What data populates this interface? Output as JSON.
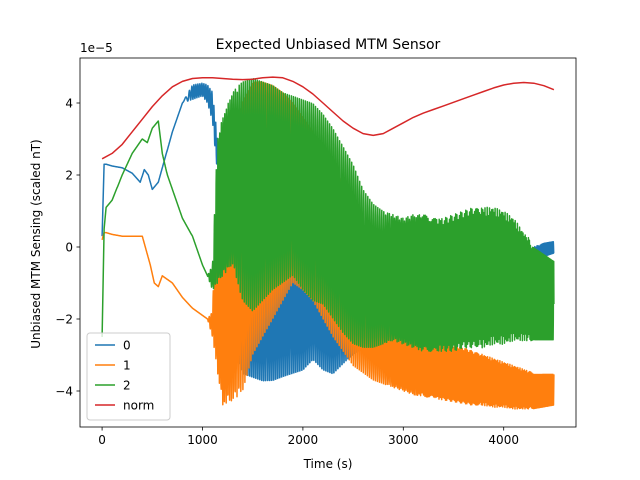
{
  "chart_data": {
    "type": "line",
    "title": "Expected Unbiased MTM Sensor",
    "xlabel": "Time (s)",
    "ylabel": "Unbiased MTM Sensing (scaled nT)",
    "offset_text": "1e−5",
    "xlim": [
      -220,
      4720
    ],
    "ylim": [
      -5.0,
      5.25
    ],
    "xticks": [
      0,
      1000,
      2000,
      3000,
      4000
    ],
    "xtick_labels": [
      "0",
      "1000",
      "2000",
      "3000",
      "4000"
    ],
    "yticks": [
      -4,
      -2,
      0,
      2,
      4
    ],
    "ytick_labels": [
      "−4",
      "−2",
      "0",
      "2",
      "4"
    ],
    "y_unit_scale": 1e-05,
    "grid": false,
    "legend_position": "lower-left",
    "series": [
      {
        "name": "0",
        "color": "#1f77b4",
        "envelope": {
          "x": [
            0,
            20,
            40,
            100,
            200,
            300,
            380,
            420,
            460,
            500,
            560,
            620,
            700,
            800,
            900,
            1000,
            1050,
            1100,
            1150,
            1200,
            1300,
            1400,
            1500,
            1600,
            1700,
            1800,
            1900,
            2000,
            2100,
            2200,
            2300,
            2400,
            2500,
            2600,
            2700,
            2800,
            2900,
            3000,
            3100,
            3200,
            3300,
            3400,
            3500,
            3600,
            3700,
            3800,
            3900,
            4000,
            4100,
            4200,
            4300,
            4400,
            4500
          ],
          "upper": [
            0.3,
            2.3,
            2.3,
            2.25,
            2.2,
            2.05,
            1.8,
            2.15,
            2.0,
            1.6,
            1.8,
            2.4,
            3.2,
            4.0,
            4.5,
            4.55,
            4.5,
            4.3,
            3.0,
            2.3,
            2.3,
            0.0,
            -0.2,
            -0.3,
            0.1,
            0.5,
            0.3,
            0.0,
            0.1,
            0.2,
            -0.3,
            -0.7,
            -1.8,
            -2.3,
            -2.6,
            -2.4,
            -2.6,
            -2.7,
            -2.4,
            -2.2,
            -2.1,
            -2.2,
            -2.0,
            -1.7,
            -1.5,
            -1.3,
            -1.1,
            -0.8,
            -0.5,
            -0.2,
            0.0,
            0.1,
            0.15
          ],
          "lower": [
            0.3,
            2.3,
            2.3,
            2.25,
            2.2,
            2.05,
            1.8,
            2.15,
            2.0,
            1.6,
            1.8,
            2.4,
            3.2,
            4.0,
            4.1,
            4.2,
            4.0,
            3.5,
            2.0,
            -0.5,
            -2.5,
            -3.6,
            -3.7,
            -3.8,
            -3.8,
            -3.7,
            -3.6,
            -3.5,
            -3.2,
            -3.5,
            -3.6,
            -3.3,
            -3.0,
            -2.8,
            -3.1,
            -3.2,
            -3.3,
            -3.3,
            -3.2,
            -3.2,
            -3.0,
            -2.9,
            -2.7,
            -2.4,
            -2.1,
            -1.8,
            -1.5,
            -1.2,
            -0.9,
            -0.6,
            -0.4,
            -0.3,
            -0.2
          ],
          "freq": [
            0,
            0,
            0,
            0,
            0,
            0,
            0,
            0,
            0,
            0,
            0,
            0,
            0,
            0,
            0.05,
            0.05,
            0.05,
            0.05,
            0.06,
            0.06,
            0.055,
            0.05,
            0.05,
            0.05,
            0.05,
            0.05,
            0.05,
            0.05,
            0.05,
            0.05,
            0.05,
            0.05,
            0.05,
            0.05,
            0.05,
            0.05,
            0.05,
            0.05,
            0.06,
            0.06,
            0.06,
            0.07,
            0.08,
            0.08,
            0.08,
            0.08,
            0.09,
            0.09,
            0.09,
            0.09,
            0.09,
            0.1,
            0.1
          ]
        }
      },
      {
        "name": "1",
        "color": "#ff7f0e",
        "envelope": {
          "x": [
            0,
            20,
            40,
            100,
            200,
            300,
            400,
            480,
            520,
            560,
            600,
            650,
            700,
            800,
            900,
            1000,
            1050,
            1100,
            1150,
            1200,
            1300,
            1400,
            1500,
            1600,
            1700,
            1800,
            1900,
            2000,
            2100,
            2200,
            2300,
            2400,
            2500,
            2600,
            2700,
            2800,
            2900,
            3000,
            3100,
            3200,
            3300,
            3400,
            3500,
            3600,
            3700,
            3800,
            3900,
            4000,
            4100,
            4200,
            4300,
            4400,
            4500
          ],
          "upper": [
            0.2,
            0.4,
            0.4,
            0.35,
            0.3,
            0.3,
            0.3,
            -0.5,
            -1.0,
            -1.1,
            -0.8,
            -0.9,
            -1.0,
            -1.4,
            -1.7,
            -1.9,
            -2.0,
            -1.8,
            2.0,
            3.0,
            3.5,
            4.1,
            4.6,
            4.6,
            4.5,
            4.3,
            4.0,
            3.6,
            3.2,
            2.6,
            2.2,
            1.8,
            1.0,
            0.0,
            -0.6,
            -1.4,
            -1.6,
            -1.7,
            -1.9,
            -2.1,
            -2.3,
            -2.5,
            -2.7,
            -2.8,
            -2.9,
            -3.0,
            -3.1,
            -3.2,
            -3.3,
            -3.4,
            -3.5,
            -3.5,
            -3.5
          ],
          "lower": [
            0.2,
            0.4,
            0.4,
            0.35,
            0.3,
            0.3,
            0.3,
            -0.5,
            -1.0,
            -1.1,
            -0.8,
            -0.9,
            -1.0,
            -1.4,
            -1.7,
            -1.9,
            -2.0,
            -2.5,
            -3.5,
            -4.4,
            -4.3,
            -4.0,
            -3.0,
            -2.5,
            -2.0,
            -1.5,
            -1.0,
            -1.2,
            -1.5,
            -2.0,
            -2.5,
            -2.9,
            -3.3,
            -3.5,
            -3.7,
            -3.8,
            -3.9,
            -4.0,
            -4.1,
            -4.15,
            -4.2,
            -4.25,
            -4.3,
            -4.35,
            -4.4,
            -4.4,
            -4.45,
            -4.45,
            -4.5,
            -4.5,
            -4.5,
            -4.45,
            -4.4
          ],
          "freq": [
            0,
            0,
            0,
            0,
            0,
            0,
            0,
            0,
            0,
            0,
            0,
            0,
            0,
            0,
            0.05,
            0.05,
            0.05,
            0.05,
            0.06,
            0.06,
            0.055,
            0.05,
            0.05,
            0.05,
            0.05,
            0.05,
            0.05,
            0.05,
            0.05,
            0.05,
            0.05,
            0.05,
            0.05,
            0.05,
            0.05,
            0.05,
            0.06,
            0.06,
            0.06,
            0.07,
            0.07,
            0.08,
            0.08,
            0.08,
            0.08,
            0.09,
            0.09,
            0.09,
            0.09,
            0.09,
            0.1,
            0.1,
            0.1
          ]
        }
      },
      {
        "name": "2",
        "color": "#2ca02c",
        "envelope": {
          "x": [
            0,
            20,
            40,
            100,
            200,
            300,
            400,
            450,
            500,
            560,
            600,
            650,
            700,
            800,
            900,
            1000,
            1050,
            1100,
            1150,
            1200,
            1300,
            1400,
            1500,
            1600,
            1700,
            1800,
            1900,
            2000,
            2100,
            2200,
            2300,
            2400,
            2500,
            2600,
            2700,
            2800,
            2900,
            3000,
            3100,
            3200,
            3300,
            3400,
            3500,
            3600,
            3700,
            3800,
            3900,
            4000,
            4100,
            4200,
            4300,
            4400,
            4500
          ],
          "upper": [
            -2.5,
            0.5,
            1.1,
            1.3,
            2.0,
            2.6,
            3.0,
            2.9,
            3.3,
            3.5,
            2.6,
            2.0,
            1.6,
            0.8,
            0.3,
            -0.5,
            -0.8,
            -0.5,
            3.0,
            3.6,
            4.3,
            4.6,
            4.7,
            4.6,
            4.5,
            4.3,
            4.2,
            4.1,
            4.0,
            3.7,
            3.3,
            2.8,
            2.3,
            1.6,
            1.2,
            1.0,
            0.9,
            0.8,
            0.9,
            0.9,
            0.8,
            0.8,
            0.9,
            1.0,
            1.1,
            1.1,
            1.1,
            1.0,
            0.8,
            0.4,
            0.1,
            -0.1,
            -0.3
          ],
          "lower": [
            -2.5,
            0.5,
            1.1,
            1.3,
            2.0,
            2.6,
            3.0,
            2.9,
            3.3,
            3.5,
            2.6,
            2.0,
            1.6,
            0.8,
            0.3,
            -0.5,
            -0.8,
            -1.2,
            -1.0,
            -0.8,
            -0.5,
            -1.5,
            -1.8,
            -1.5,
            -1.2,
            -1.0,
            -0.8,
            -1.2,
            -1.5,
            -1.6,
            -2.0,
            -2.4,
            -2.7,
            -2.8,
            -2.8,
            -2.7,
            -2.6,
            -2.7,
            -2.8,
            -2.9,
            -2.9,
            -2.9,
            -2.9,
            -2.8,
            -2.8,
            -2.8,
            -2.7,
            -2.7,
            -2.6,
            -2.6,
            -2.6,
            -2.6,
            -2.6
          ],
          "freq": [
            0,
            0,
            0,
            0,
            0,
            0,
            0,
            0,
            0,
            0,
            0,
            0,
            0,
            0,
            0.05,
            0.05,
            0.05,
            0.05,
            0.06,
            0.06,
            0.055,
            0.05,
            0.05,
            0.05,
            0.05,
            0.05,
            0.05,
            0.05,
            0.05,
            0.05,
            0.05,
            0.05,
            0.05,
            0.05,
            0.05,
            0.05,
            0.06,
            0.06,
            0.06,
            0.07,
            0.07,
            0.08,
            0.08,
            0.08,
            0.08,
            0.09,
            0.09,
            0.09,
            0.09,
            0.09,
            0.1,
            0.1,
            0.1
          ]
        }
      },
      {
        "name": "norm",
        "color": "#d62728",
        "x": [
          0,
          100,
          200,
          300,
          400,
          500,
          600,
          700,
          800,
          900,
          1000,
          1100,
          1200,
          1300,
          1400,
          1500,
          1600,
          1700,
          1800,
          1900,
          2000,
          2100,
          2200,
          2300,
          2400,
          2500,
          2600,
          2700,
          2800,
          2900,
          3000,
          3100,
          3200,
          3300,
          3400,
          3500,
          3600,
          3700,
          3800,
          3900,
          4000,
          4100,
          4200,
          4300,
          4400,
          4500
        ],
        "y": [
          2.45,
          2.6,
          2.85,
          3.2,
          3.55,
          3.9,
          4.2,
          4.45,
          4.6,
          4.68,
          4.7,
          4.7,
          4.68,
          4.66,
          4.65,
          4.66,
          4.7,
          4.72,
          4.7,
          4.6,
          4.45,
          4.25,
          4.0,
          3.75,
          3.5,
          3.3,
          3.15,
          3.1,
          3.15,
          3.3,
          3.45,
          3.6,
          3.72,
          3.82,
          3.92,
          4.02,
          4.12,
          4.22,
          4.32,
          4.42,
          4.5,
          4.55,
          4.57,
          4.55,
          4.48,
          4.37
        ]
      }
    ]
  }
}
